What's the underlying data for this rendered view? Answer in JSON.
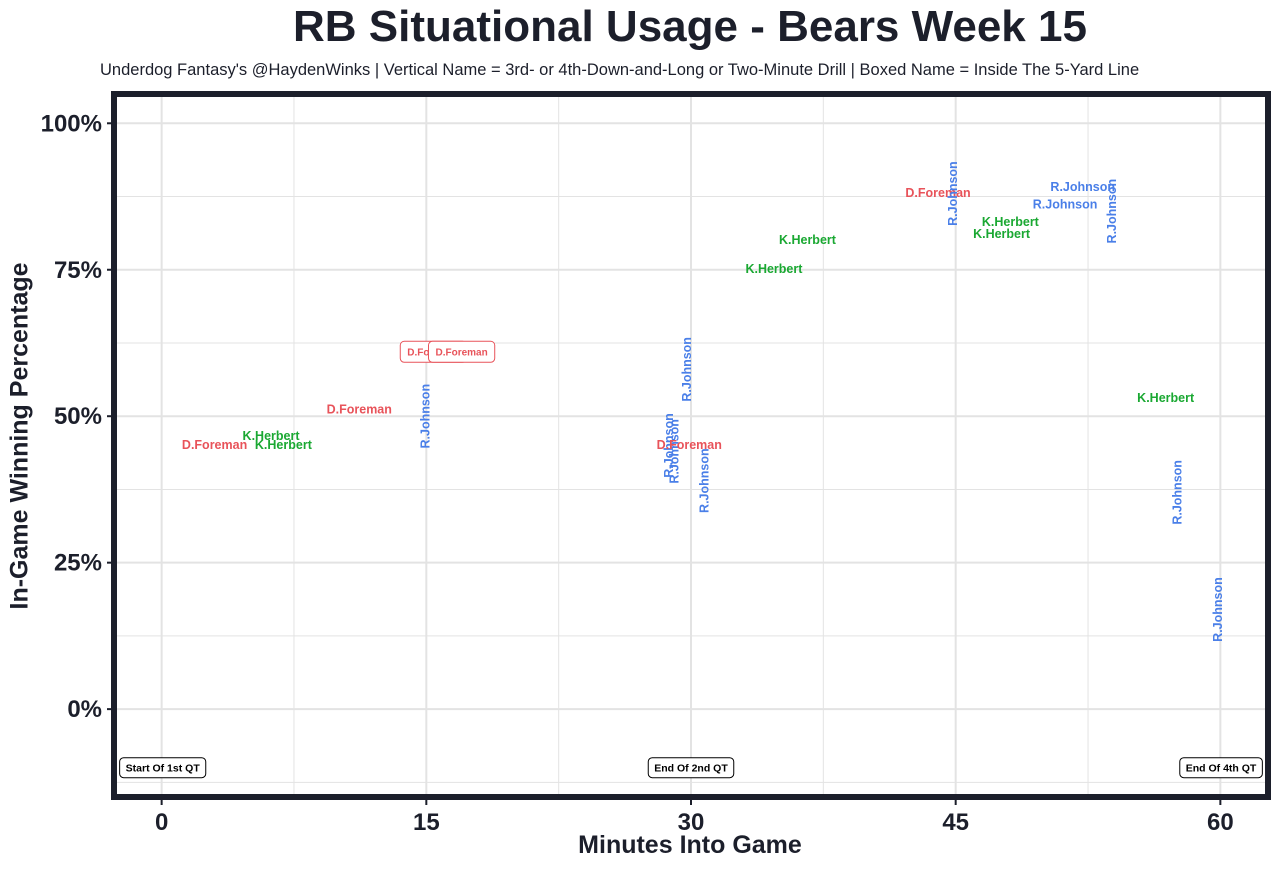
{
  "title": "RB Situational Usage - Bears Week 15",
  "subtitle": "Underdog Fantasy's @HaydenWinks | Vertical Name = 3rd- or 4th-Down-and-Long or Two-Minute Drill | Boxed Name = Inside The 5-Yard Line",
  "colors": {
    "D.Foreman": "#e8535a",
    "K.Herbert": "#1aa832",
    "R.Johnson": "#4a7fe8",
    "frame": "#1c1f2b",
    "grid": "#e3e3e3",
    "text": "#1c1f2b"
  },
  "chart_data": {
    "type": "scatter",
    "xlabel": "Minutes Into Game",
    "ylabel": "In-Game Winning Percentage",
    "xlim": [
      -2.7,
      62.7
    ],
    "ylim": [
      -15,
      105
    ],
    "x_ticks": [
      0,
      15,
      30,
      45,
      60
    ],
    "x_tick_labels": [
      "0",
      "15",
      "30",
      "45",
      "60"
    ],
    "y_ticks": [
      0,
      25,
      50,
      75,
      100
    ],
    "y_tick_labels": [
      "0%",
      "25%",
      "50%",
      "75%",
      "100%"
    ],
    "grid": true,
    "series_names": [
      "D.Foreman",
      "K.Herbert",
      "R.Johnson"
    ],
    "points": [
      {
        "player": "D.Foreman",
        "x": 3.0,
        "y": 45.0,
        "style": "normal"
      },
      {
        "player": "K.Herbert",
        "x": 6.2,
        "y": 46.5,
        "style": "normal"
      },
      {
        "player": "K.Herbert",
        "x": 6.9,
        "y": 45.0,
        "style": "normal"
      },
      {
        "player": "D.Foreman",
        "x": 11.2,
        "y": 51.0,
        "style": "normal"
      },
      {
        "player": "R.Johnson",
        "x": 15.0,
        "y": 50.0,
        "style": "vertical"
      },
      {
        "player": "D.Foreman",
        "x": 15.4,
        "y": 61.0,
        "style": "boxed"
      },
      {
        "player": "D.Foreman",
        "x": 17.0,
        "y": 61.0,
        "style": "boxed"
      },
      {
        "player": "R.Johnson",
        "x": 29.1,
        "y": 44.0,
        "style": "vertical"
      },
      {
        "player": "R.Johnson",
        "x": 28.8,
        "y": 45.0,
        "style": "vertical"
      },
      {
        "player": "R.Johnson",
        "x": 29.8,
        "y": 58.0,
        "style": "vertical"
      },
      {
        "player": "D.Foreman",
        "x": 29.9,
        "y": 45.0,
        "style": "normal"
      },
      {
        "player": "R.Johnson",
        "x": 30.8,
        "y": 39.0,
        "style": "vertical"
      },
      {
        "player": "K.Herbert",
        "x": 34.7,
        "y": 75.0,
        "style": "normal"
      },
      {
        "player": "K.Herbert",
        "x": 36.6,
        "y": 80.0,
        "style": "normal"
      },
      {
        "player": "D.Foreman",
        "x": 44.0,
        "y": 88.0,
        "style": "normal"
      },
      {
        "player": "R.Johnson",
        "x": 44.9,
        "y": 88.0,
        "style": "vertical"
      },
      {
        "player": "K.Herbert",
        "x": 48.1,
        "y": 83.0,
        "style": "normal"
      },
      {
        "player": "K.Herbert",
        "x": 47.6,
        "y": 81.0,
        "style": "normal"
      },
      {
        "player": "R.Johnson",
        "x": 51.2,
        "y": 86.0,
        "style": "normal"
      },
      {
        "player": "R.Johnson",
        "x": 52.2,
        "y": 89.0,
        "style": "normal"
      },
      {
        "player": "R.Johnson",
        "x": 53.9,
        "y": 85.0,
        "style": "vertical"
      },
      {
        "player": "K.Herbert",
        "x": 56.9,
        "y": 53.0,
        "style": "normal"
      },
      {
        "player": "R.Johnson",
        "x": 57.6,
        "y": 37.0,
        "style": "vertical"
      },
      {
        "player": "R.Johnson",
        "x": 59.9,
        "y": 17.0,
        "style": "vertical"
      }
    ],
    "annotations": [
      {
        "text": "Start Of 1st QT",
        "x": 0,
        "y": -10,
        "anchor": "left"
      },
      {
        "text": "End Of 2nd QT",
        "x": 30,
        "y": -10,
        "anchor": "center"
      },
      {
        "text": "End Of 4th QT",
        "x": 60,
        "y": -10,
        "anchor": "right"
      }
    ]
  }
}
